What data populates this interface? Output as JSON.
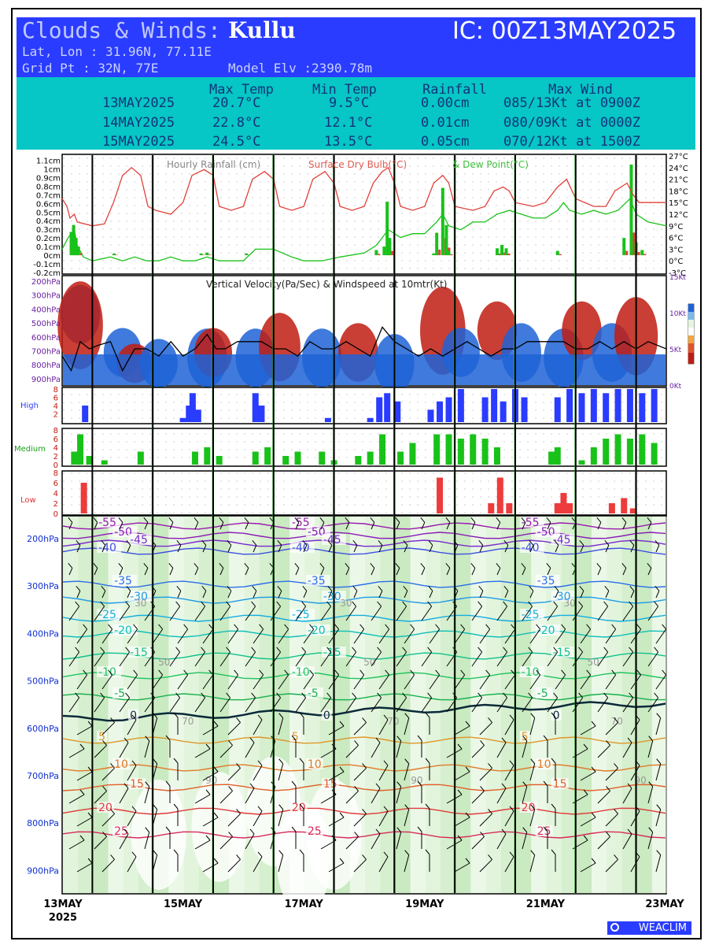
{
  "header": {
    "title_prefix": "Clouds & Winds:",
    "location": "Kullu",
    "initial_condition": "IC: 00Z13MAY2025",
    "latlon": "Lat, Lon : 31.96N, 77.11E",
    "gridpt": "Grid Pt  : 32N, 77E",
    "model_elv": "Model Elv :2390.78m",
    "colors": {
      "blue_band": "#2a3cff",
      "cyan_band": "#06c6c6"
    }
  },
  "summary_table": {
    "columns": [
      "Max Temp",
      "Min Temp",
      "Rainfall",
      "Max Wind"
    ],
    "rows": [
      {
        "date": "13MAY2025",
        "max_temp": "20.7°C",
        "min_temp": "9.5°C",
        "rainfall": "0.00cm",
        "max_wind": "085/13Kt at 0900Z"
      },
      {
        "date": "14MAY2025",
        "max_temp": "22.8°C",
        "min_temp": "12.1°C",
        "rainfall": "0.01cm",
        "max_wind": "080/09Kt at 0000Z"
      },
      {
        "date": "15MAY2025",
        "max_temp": "24.5°C",
        "min_temp": "13.5°C",
        "rainfall": "0.05cm",
        "max_wind": "070/12Kt at 1500Z"
      }
    ]
  },
  "chart_data": [
    {
      "type": "bar",
      "panel": "rain-temp",
      "title": "Hourly Rainfall (cm)",
      "title2": "Surface Dry Bulb(°C)",
      "title3": "& Dew Point(°C)",
      "left_ticks": [
        "1.1cm",
        "1cm",
        "0.9cm",
        "0.8cm",
        "0.7cm",
        "0.6cm",
        "0.5cm",
        "0.4cm",
        "0.3cm",
        "0.2cm",
        "0.1cm",
        "0cm",
        "-0.1cm",
        "-0.2cm"
      ],
      "right_ticks": [
        "27°C",
        "24°C",
        "21°C",
        "18°C",
        "15°C",
        "12°C",
        "9°C",
        "6°C",
        "3°C",
        "0°C",
        "-3°C"
      ],
      "ylim_rain": [
        -0.2,
        1.15
      ],
      "ylim_temp": [
        -3,
        27
      ],
      "x_days": [
        0,
        10
      ],
      "rain": [
        {
          "t": 0.15,
          "v": 0.27
        },
        {
          "t": 0.19,
          "v": 0.35
        },
        {
          "t": 0.23,
          "v": 0.2
        },
        {
          "t": 0.27,
          "v": 0.1
        },
        {
          "t": 0.86,
          "v": 0.02
        },
        {
          "t": 2.3,
          "v": 0.02
        },
        {
          "t": 2.4,
          "v": 0.03
        },
        {
          "t": 3.05,
          "v": 0.02
        },
        {
          "t": 5.2,
          "v": 0.06
        },
        {
          "t": 5.33,
          "v": 0.1
        },
        {
          "t": 5.38,
          "v": 0.62
        },
        {
          "t": 5.42,
          "v": 0.2
        },
        {
          "t": 6.15,
          "v": 0.02
        },
        {
          "t": 6.2,
          "v": 0.26
        },
        {
          "t": 6.3,
          "v": 0.78
        },
        {
          "t": 6.36,
          "v": 0.35
        },
        {
          "t": 6.4,
          "v": 0.05
        },
        {
          "t": 7.2,
          "v": 0.08
        },
        {
          "t": 7.28,
          "v": 0.12
        },
        {
          "t": 7.35,
          "v": 0.08
        },
        {
          "t": 8.2,
          "v": 0.05
        },
        {
          "t": 9.3,
          "v": 0.2
        },
        {
          "t": 9.42,
          "v": 1.05
        },
        {
          "t": 9.5,
          "v": 0.15
        },
        {
          "t": 9.6,
          "v": 0.06
        }
      ],
      "series": [
        {
          "name": "Dry Bulb",
          "color": "#e0403a",
          "points": [
            [
              0,
              16
            ],
            [
              0.08,
              14
            ],
            [
              0.13,
              11
            ],
            [
              0.2,
              12
            ],
            [
              0.25,
              10
            ],
            [
              0.5,
              9
            ],
            [
              0.7,
              9.5
            ],
            [
              0.85,
              15
            ],
            [
              1.0,
              22
            ],
            [
              1.15,
              24
            ],
            [
              1.3,
              22
            ],
            [
              1.42,
              14
            ],
            [
              1.55,
              13
            ],
            [
              1.8,
              12
            ],
            [
              2.0,
              15
            ],
            [
              2.15,
              22
            ],
            [
              2.35,
              23.5
            ],
            [
              2.5,
              22
            ],
            [
              2.6,
              14
            ],
            [
              2.8,
              13
            ],
            [
              3.0,
              14
            ],
            [
              3.15,
              21
            ],
            [
              3.35,
              23
            ],
            [
              3.5,
              21
            ],
            [
              3.6,
              14
            ],
            [
              3.8,
              13
            ],
            [
              4.0,
              14
            ],
            [
              4.15,
              21
            ],
            [
              4.35,
              23
            ],
            [
              4.5,
              20
            ],
            [
              4.6,
              14
            ],
            [
              4.8,
              13
            ],
            [
              5.0,
              14
            ],
            [
              5.15,
              20
            ],
            [
              5.3,
              23
            ],
            [
              5.4,
              24
            ],
            [
              5.5,
              20
            ],
            [
              5.6,
              14
            ],
            [
              5.8,
              13
            ],
            [
              6.0,
              14
            ],
            [
              6.15,
              20
            ],
            [
              6.3,
              22
            ],
            [
              6.4,
              20
            ],
            [
              6.5,
              14
            ],
            [
              6.8,
              13
            ],
            [
              7.0,
              14
            ],
            [
              7.15,
              18
            ],
            [
              7.3,
              19
            ],
            [
              7.4,
              18
            ],
            [
              7.5,
              15
            ],
            [
              7.8,
              14
            ],
            [
              8.0,
              15
            ],
            [
              8.2,
              19
            ],
            [
              8.35,
              21
            ],
            [
              8.5,
              16
            ],
            [
              8.8,
              14
            ],
            [
              9.0,
              14
            ],
            [
              9.15,
              18
            ],
            [
              9.35,
              20
            ],
            [
              9.45,
              17
            ],
            [
              9.55,
              15
            ],
            [
              9.8,
              15
            ],
            [
              10,
              15
            ]
          ]
        },
        {
          "name": "Dew Point",
          "color": "#19c219",
          "points": [
            [
              0,
              3
            ],
            [
              0.1,
              6
            ],
            [
              0.2,
              8
            ],
            [
              0.25,
              4
            ],
            [
              0.35,
              1
            ],
            [
              0.5,
              0
            ],
            [
              0.8,
              1
            ],
            [
              1.0,
              0
            ],
            [
              1.2,
              1
            ],
            [
              1.4,
              0
            ],
            [
              1.6,
              0
            ],
            [
              1.8,
              1
            ],
            [
              2.0,
              0
            ],
            [
              2.2,
              0
            ],
            [
              2.4,
              1
            ],
            [
              2.6,
              0
            ],
            [
              3.0,
              0
            ],
            [
              3.2,
              3
            ],
            [
              3.5,
              3
            ],
            [
              3.8,
              1
            ],
            [
              4.0,
              0
            ],
            [
              4.3,
              0
            ],
            [
              4.6,
              1
            ],
            [
              5.0,
              2
            ],
            [
              5.2,
              4
            ],
            [
              5.4,
              8
            ],
            [
              5.6,
              6
            ],
            [
              5.8,
              7
            ],
            [
              6.0,
              7
            ],
            [
              6.2,
              10
            ],
            [
              6.3,
              12
            ],
            [
              6.4,
              9
            ],
            [
              6.6,
              8
            ],
            [
              6.8,
              10
            ],
            [
              7.0,
              10
            ],
            [
              7.2,
              12
            ],
            [
              7.4,
              13
            ],
            [
              7.6,
              12
            ],
            [
              7.8,
              11
            ],
            [
              8.0,
              11
            ],
            [
              8.2,
              13
            ],
            [
              8.3,
              15
            ],
            [
              8.4,
              13
            ],
            [
              8.6,
              12
            ],
            [
              8.8,
              13
            ],
            [
              9.0,
              12
            ],
            [
              9.2,
              13
            ],
            [
              9.4,
              16
            ],
            [
              9.5,
              12
            ],
            [
              9.7,
              10
            ],
            [
              10,
              9
            ]
          ]
        }
      ]
    },
    {
      "type": "heatmap",
      "panel": "vertical-velocity",
      "title": "Vertical Velocity(Pa/Sec) & Windspeed at 10mtr(Kt)",
      "left_ticks": [
        "200hPa",
        "300hPa",
        "400hPa",
        "500hPa",
        "600hPa",
        "700hPa",
        "800hPa",
        "900hPa"
      ],
      "right_ticks": [
        "15Kt",
        "10Kt",
        "5Kt",
        "0Kt"
      ],
      "windspeed_kt": [
        [
          0,
          4
        ],
        [
          0.15,
          2
        ],
        [
          0.3,
          6
        ],
        [
          0.45,
          5
        ],
        [
          0.6,
          5.5
        ],
        [
          0.8,
          6
        ],
        [
          1.0,
          2
        ],
        [
          1.2,
          5
        ],
        [
          1.4,
          5
        ],
        [
          1.6,
          4
        ],
        [
          1.8,
          6
        ],
        [
          2.0,
          4
        ],
        [
          2.2,
          5
        ],
        [
          2.4,
          7
        ],
        [
          2.55,
          5
        ],
        [
          2.7,
          5
        ],
        [
          2.9,
          6
        ],
        [
          3.1,
          6
        ],
        [
          3.3,
          6
        ],
        [
          3.5,
          5
        ],
        [
          3.7,
          5
        ],
        [
          3.9,
          4
        ],
        [
          4.1,
          6
        ],
        [
          4.3,
          5
        ],
        [
          4.5,
          5
        ],
        [
          4.7,
          6
        ],
        [
          4.9,
          5
        ],
        [
          5.1,
          4
        ],
        [
          5.3,
          8
        ],
        [
          5.5,
          6
        ],
        [
          5.7,
          5
        ],
        [
          5.9,
          4
        ],
        [
          6.1,
          5
        ],
        [
          6.3,
          4
        ],
        [
          6.5,
          5
        ],
        [
          6.7,
          6
        ],
        [
          6.9,
          5
        ],
        [
          7.1,
          4
        ],
        [
          7.3,
          5
        ],
        [
          7.5,
          5
        ],
        [
          7.7,
          6
        ],
        [
          7.9,
          6
        ],
        [
          8.1,
          6
        ],
        [
          8.3,
          6
        ],
        [
          8.5,
          5
        ],
        [
          8.7,
          5
        ],
        [
          8.9,
          6
        ],
        [
          9.1,
          5
        ],
        [
          9.3,
          6
        ],
        [
          9.5,
          5
        ],
        [
          9.7,
          6
        ],
        [
          10,
          5
        ]
      ]
    },
    {
      "type": "bar",
      "panel": "high-cloud",
      "label": "High",
      "color": "#2a3cff",
      "ticks": [
        "8",
        "6",
        "4",
        "2"
      ],
      "ylim": [
        0,
        8
      ],
      "values": [
        [
          0.33,
          0
        ],
        [
          0.38,
          4
        ],
        [
          2.0,
          1
        ],
        [
          2.1,
          4
        ],
        [
          2.16,
          7
        ],
        [
          2.25,
          3
        ],
        [
          3.2,
          7
        ],
        [
          3.3,
          4
        ],
        [
          4.4,
          1
        ],
        [
          5.1,
          1
        ],
        [
          5.25,
          6
        ],
        [
          5.38,
          7
        ],
        [
          5.55,
          5
        ],
        [
          6.1,
          3
        ],
        [
          6.25,
          5
        ],
        [
          6.4,
          6
        ],
        [
          6.6,
          8
        ],
        [
          7.0,
          6
        ],
        [
          7.15,
          8
        ],
        [
          7.3,
          5
        ],
        [
          7.5,
          8
        ],
        [
          7.65,
          6
        ],
        [
          8.2,
          6
        ],
        [
          8.4,
          8
        ],
        [
          8.6,
          7
        ],
        [
          8.8,
          8
        ],
        [
          9.0,
          7
        ],
        [
          9.2,
          8
        ],
        [
          9.4,
          8
        ],
        [
          9.6,
          7
        ],
        [
          9.8,
          8
        ]
      ]
    },
    {
      "type": "bar",
      "panel": "medium-cloud",
      "label": "Medium",
      "color": "#19c219",
      "ticks": [
        "8",
        "6",
        "4",
        "2",
        "0"
      ],
      "ylim": [
        0,
        8
      ],
      "values": [
        [
          0.2,
          3
        ],
        [
          0.3,
          7
        ],
        [
          0.45,
          2
        ],
        [
          0.7,
          1
        ],
        [
          1.3,
          3
        ],
        [
          2.2,
          3
        ],
        [
          2.4,
          4
        ],
        [
          2.6,
          2
        ],
        [
          3.2,
          3
        ],
        [
          3.4,
          4
        ],
        [
          3.7,
          2
        ],
        [
          3.9,
          3
        ],
        [
          4.3,
          3
        ],
        [
          4.5,
          1
        ],
        [
          4.9,
          2
        ],
        [
          5.1,
          3
        ],
        [
          5.3,
          7
        ],
        [
          5.6,
          3
        ],
        [
          5.8,
          5
        ],
        [
          6.2,
          7
        ],
        [
          6.4,
          7
        ],
        [
          6.6,
          6
        ],
        [
          6.8,
          7
        ],
        [
          7.0,
          6
        ],
        [
          7.2,
          4
        ],
        [
          8.1,
          3
        ],
        [
          8.2,
          4
        ],
        [
          8.6,
          1
        ],
        [
          8.8,
          4
        ],
        [
          9.0,
          6
        ],
        [
          9.2,
          7
        ],
        [
          9.4,
          6
        ],
        [
          9.6,
          7
        ],
        [
          9.8,
          5
        ]
      ]
    },
    {
      "type": "bar",
      "panel": "low-cloud",
      "label": "Low",
      "color": "#ee3b3b",
      "ticks": [
        "8",
        "6",
        "4",
        "2",
        "0"
      ],
      "ylim": [
        0,
        8
      ],
      "values": [
        [
          0.36,
          6
        ],
        [
          6.25,
          7
        ],
        [
          7.1,
          2
        ],
        [
          7.25,
          7
        ],
        [
          7.4,
          2
        ],
        [
          8.2,
          2
        ],
        [
          8.3,
          4
        ],
        [
          8.4,
          2
        ],
        [
          9.1,
          2
        ],
        [
          9.3,
          3
        ],
        [
          9.45,
          1
        ]
      ]
    },
    {
      "type": "area",
      "panel": "skew-section",
      "left_ticks": [
        "200hPa",
        "300hPa",
        "400hPa",
        "500hPa",
        "600hPa",
        "700hPa",
        "800hPa",
        "900hPa"
      ],
      "x_ticks": [
        "13MAY",
        "15MAY",
        "17MAY",
        "19MAY",
        "21MAY",
        "23MAY"
      ],
      "year": "2025",
      "isotherm_labels": [
        "-55",
        "-50",
        "-45",
        "-40",
        "-35",
        "-30",
        "-25",
        "-20",
        "-15",
        "-10",
        "-5",
        "0",
        "5",
        "10",
        "15",
        "20",
        "25"
      ],
      "rh_labels": [
        "30",
        "50",
        "70",
        "90"
      ]
    }
  ],
  "footer": {
    "logo": "WEACLIM"
  }
}
